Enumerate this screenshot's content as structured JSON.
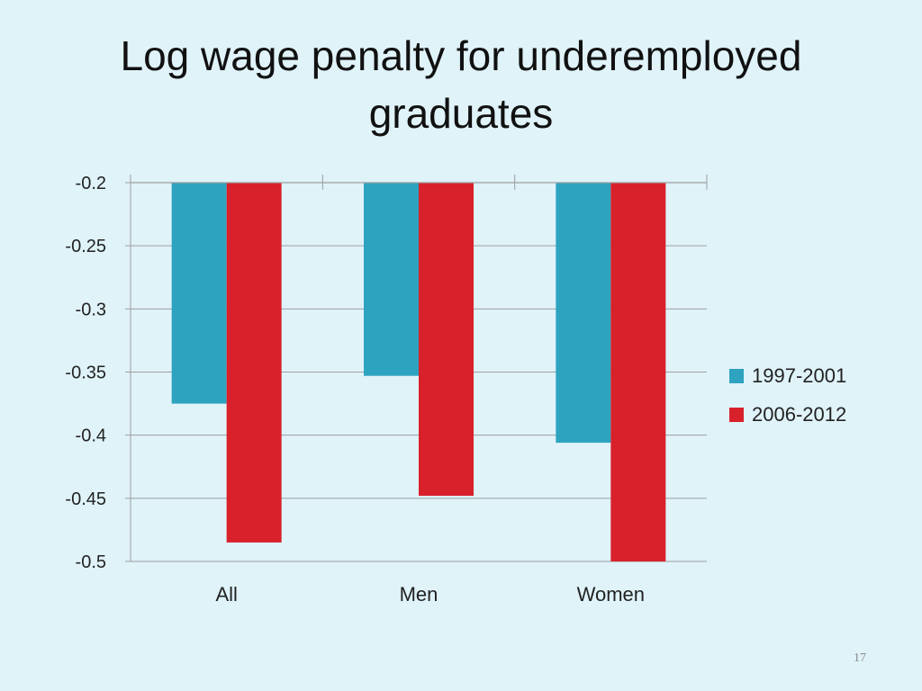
{
  "slide": {
    "title_line1": "Log wage penalty for underemployed",
    "title_line2": "graduates",
    "page_number": "17"
  },
  "colors": {
    "series_1997_2001": "#2ea3c0",
    "series_2006_2012": "#d9212b",
    "gridline": "#9e9e9e",
    "axis": "#9e9e9e",
    "background": "#dff3f9"
  },
  "chart_data": {
    "type": "bar",
    "title": "",
    "xlabel": "",
    "ylabel": "",
    "categories": [
      "All",
      "Men",
      "Women"
    ],
    "series": [
      {
        "name": "1997-2001",
        "values": [
          -0.375,
          -0.353,
          -0.406
        ]
      },
      {
        "name": "2006-2012",
        "values": [
          -0.485,
          -0.448,
          -0.5
        ]
      }
    ],
    "ylim": [
      -0.5,
      -0.2
    ],
    "yticks": [
      -0.2,
      -0.25,
      -0.3,
      -0.35,
      -0.4,
      -0.45,
      -0.5
    ],
    "ytick_labels": [
      "-0.2",
      "-0.25",
      "-0.3",
      "-0.35",
      "-0.4",
      "-0.45",
      "-0.5"
    ],
    "category_axis_at": -0.2,
    "grid": true,
    "legend": "right"
  }
}
